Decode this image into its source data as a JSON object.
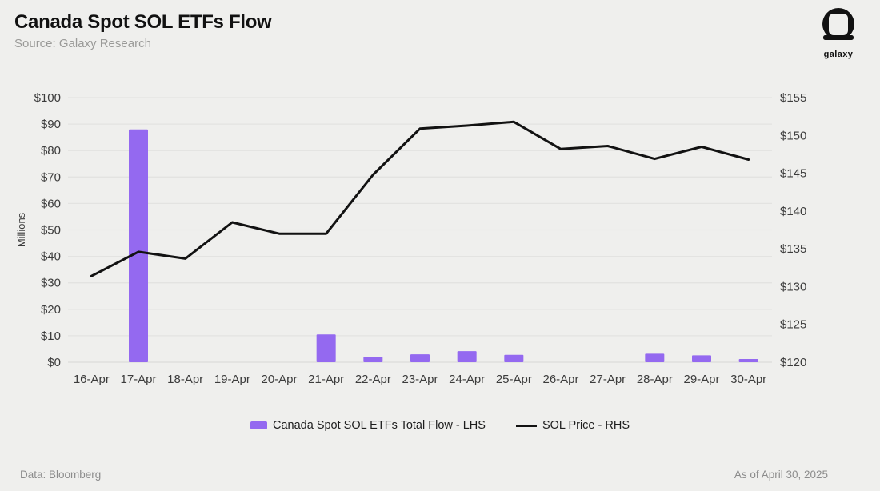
{
  "header": {
    "title": "Canada Spot SOL ETFs Flow",
    "subtitle": "Source: Galaxy Research"
  },
  "logo": {
    "word": "galaxy"
  },
  "footer": {
    "left": "Data: Bloomberg",
    "right": "As of April 30, 2025"
  },
  "colors": {
    "background": "#EFEFED",
    "bar": "#9469F0",
    "line": "#121212",
    "grid": "#E3E3E1",
    "baseline": "#DCDCDA",
    "tick_text": "#3C3C3C",
    "muted_text": "#8C8C8C"
  },
  "chart_data": {
    "type": "bar+line",
    "title": "Canada Spot SOL ETFs Flow",
    "categories": [
      "16-Apr",
      "17-Apr",
      "18-Apr",
      "19-Apr",
      "20-Apr",
      "21-Apr",
      "22-Apr",
      "23-Apr",
      "24-Apr",
      "25-Apr",
      "26-Apr",
      "27-Apr",
      "28-Apr",
      "29-Apr",
      "30-Apr"
    ],
    "series": [
      {
        "name": "Canada Spot SOL ETFs Total Flow - LHS",
        "type": "bar",
        "axis": "left",
        "values": [
          0,
          88,
          0,
          0,
          0,
          10.5,
          2,
          3,
          4.2,
          2.8,
          0,
          0,
          3.2,
          2.6,
          1.2
        ]
      },
      {
        "name": "SOL Price - RHS",
        "type": "line",
        "axis": "right",
        "values": [
          131.4,
          134.6,
          133.7,
          138.5,
          137.0,
          137.0,
          144.8,
          150.9,
          151.3,
          151.8,
          148.2,
          148.6,
          146.9,
          148.5,
          146.8
        ]
      }
    ],
    "left_axis": {
      "title": "Millions",
      "min": 0,
      "max": 100,
      "tick_values": [
        0,
        10,
        20,
        30,
        40,
        50,
        60,
        70,
        80,
        90,
        100
      ],
      "tick_labels": [
        "$0",
        "$10",
        "$20",
        "$30",
        "$40",
        "$50",
        "$60",
        "$70",
        "$80",
        "$90",
        "$100"
      ]
    },
    "right_axis": {
      "min": 120,
      "max": 155,
      "tick_values": [
        120,
        125,
        130,
        135,
        140,
        145,
        150,
        155
      ],
      "tick_labels": [
        "$120",
        "$125",
        "$130",
        "$135",
        "$140",
        "$145",
        "$150",
        "$155"
      ]
    },
    "legend": [
      {
        "swatch": "bar",
        "label": "Canada Spot SOL ETFs Total Flow - LHS"
      },
      {
        "swatch": "line",
        "label": "SOL Price - RHS"
      }
    ],
    "grid": "horizontal-only",
    "legend_position": "bottom-center"
  }
}
